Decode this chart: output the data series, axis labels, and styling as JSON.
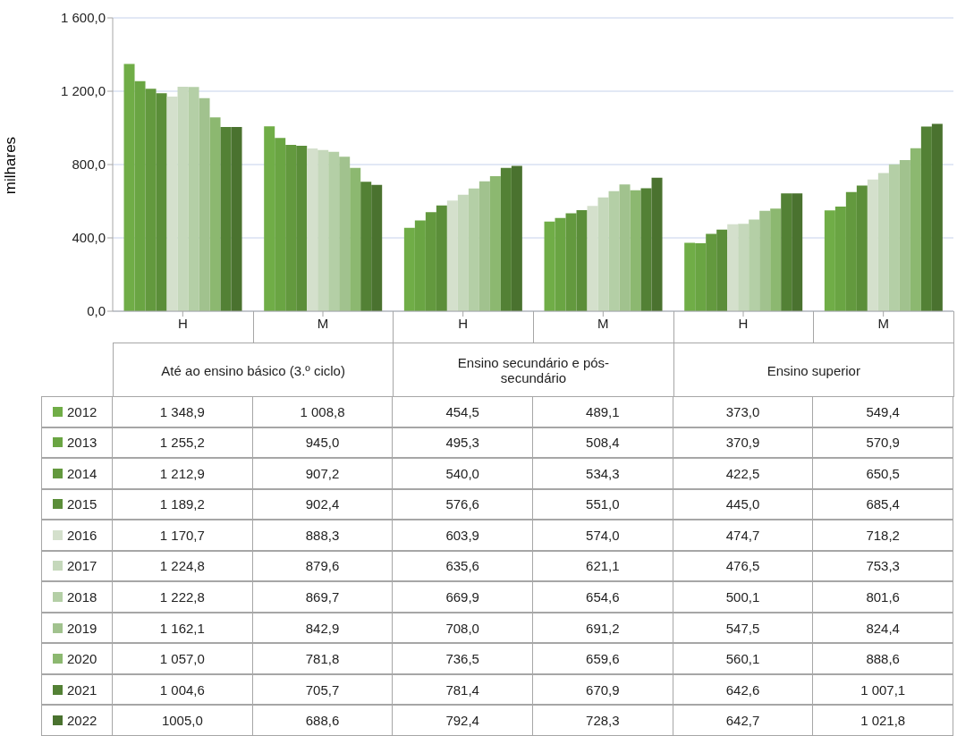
{
  "chart_data": {
    "type": "bar",
    "ylabel": "milhares",
    "categories": [
      "H",
      "M",
      "H",
      "M",
      "H",
      "M"
    ],
    "annotations": [
      "Até ao ensino básico (3.º ciclo)",
      "Ensino secundário e pós-secundário",
      "Ensino superior"
    ],
    "ylim": [
      0,
      1600
    ],
    "yticks": [
      {
        "value": 0,
        "label": "0,0"
      },
      {
        "value": 400,
        "label": "400,0"
      },
      {
        "value": 800,
        "label": "800,0"
      },
      {
        "value": 1200,
        "label": "1 200,0"
      },
      {
        "value": 1600,
        "label": "1 600,0"
      }
    ],
    "grid": "y",
    "legend": "bottom left",
    "series": [
      {
        "name": "2012",
        "color": "#70ad47",
        "values": [
          1348.9,
          1008.8,
          454.5,
          489.1,
          373.0,
          549.4
        ],
        "value_labels": [
          "1 348,9",
          "1 008,8",
          "454,5",
          "489,1",
          "373,0",
          "549,4"
        ]
      },
      {
        "name": "2013",
        "color": "#6aa543",
        "values": [
          1255.2,
          945.0,
          495.3,
          508.4,
          370.9,
          570.9
        ],
        "value_labels": [
          "1 255,2",
          "945,0",
          "495,3",
          "508,4",
          "370,9",
          "570,9"
        ]
      },
      {
        "name": "2014",
        "color": "#63993e",
        "values": [
          1212.9,
          907.2,
          540.0,
          534.3,
          422.5,
          650.5
        ],
        "value_labels": [
          "1 212,9",
          "907,2",
          "540,0",
          "534,3",
          "422,5",
          "650,5"
        ]
      },
      {
        "name": "2015",
        "color": "#5b8e39",
        "values": [
          1189.2,
          902.4,
          576.6,
          551.0,
          445.0,
          685.4
        ],
        "value_labels": [
          "1 189,2",
          "902,4",
          "576,6",
          "551,0",
          "445,0",
          "685,4"
        ]
      },
      {
        "name": "2016",
        "color": "#d4e0cc",
        "values": [
          1170.7,
          888.3,
          603.9,
          574.0,
          474.7,
          718.2
        ],
        "value_labels": [
          "1 170,7",
          "888,3",
          "603,9",
          "574,0",
          "474,7",
          "718,2"
        ]
      },
      {
        "name": "2017",
        "color": "#c5d8bb",
        "values": [
          1224.8,
          879.6,
          635.6,
          621.1,
          476.5,
          753.3
        ],
        "value_labels": [
          "1 224,8",
          "879,6",
          "635,6",
          "621,1",
          "476,5",
          "753,3"
        ]
      },
      {
        "name": "2018",
        "color": "#b4cfa6",
        "values": [
          1222.8,
          869.7,
          669.9,
          654.6,
          500.1,
          801.6
        ],
        "value_labels": [
          "1 222,8",
          "869,7",
          "669,9",
          "654,6",
          "500,1",
          "801,6"
        ]
      },
      {
        "name": "2019",
        "color": "#a1c28e",
        "values": [
          1162.1,
          842.9,
          708.0,
          691.2,
          547.5,
          824.4
        ],
        "value_labels": [
          "1 162,1",
          "842,9",
          "708,0",
          "691,2",
          "547,5",
          "824,4"
        ]
      },
      {
        "name": "2020",
        "color": "#8cb870",
        "values": [
          1057.0,
          781.8,
          736.5,
          659.6,
          560.1,
          888.6
        ],
        "value_labels": [
          "1 057,0",
          "781,8",
          "736,5",
          "659,6",
          "560,1",
          "888,6"
        ]
      },
      {
        "name": "2021",
        "color": "#538135",
        "values": [
          1004.6,
          705.7,
          781.4,
          670.9,
          642.6,
          1007.1
        ],
        "value_labels": [
          "1 004,6",
          "705,7",
          "781,4",
          "670,9",
          "642,6",
          "1 007,1"
        ]
      },
      {
        "name": "2022",
        "color": "#4a722f",
        "values": [
          1005.0,
          688.6,
          792.4,
          728.3,
          642.7,
          1021.8
        ],
        "value_labels": [
          "1005,0",
          "688,6",
          "792,4",
          "728,3",
          "642,7",
          "1 021,8"
        ]
      }
    ]
  }
}
